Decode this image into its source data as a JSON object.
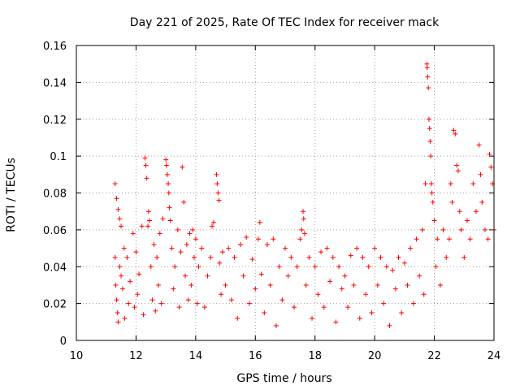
{
  "chart_data": {
    "type": "scatter",
    "title": "Day 221 of 2025, Rate Of TEC Index for receiver mack",
    "xlabel": "GPS time / hours",
    "ylabel": "ROTI / TECUs",
    "xlim": [
      10,
      24
    ],
    "ylim": [
      0,
      0.16
    ],
    "x_ticks": [
      10,
      12,
      14,
      16,
      18,
      20,
      22,
      24
    ],
    "x_tick_labels": [
      "10",
      "12",
      "14",
      "16",
      "18",
      "20",
      "22",
      "24"
    ],
    "y_ticks": [
      0,
      0.02,
      0.04,
      0.06,
      0.08,
      0.1,
      0.12,
      0.14,
      0.16
    ],
    "y_tick_labels": [
      "0",
      "0.02",
      "0.04",
      "0.06",
      "0.08",
      "0.1",
      "0.12",
      "0.14",
      "0.16"
    ],
    "grid": true,
    "marker": "+",
    "color": "#ff0000",
    "series": [
      {
        "name": "ROTI",
        "points": [
          [
            11.3,
            0.085
          ],
          [
            11.35,
            0.077
          ],
          [
            11.4,
            0.071
          ],
          [
            11.45,
            0.066
          ],
          [
            11.5,
            0.062
          ],
          [
            11.3,
            0.045
          ],
          [
            11.32,
            0.03
          ],
          [
            11.35,
            0.022
          ],
          [
            11.38,
            0.015
          ],
          [
            11.4,
            0.01
          ],
          [
            11.45,
            0.04
          ],
          [
            11.5,
            0.035
          ],
          [
            11.55,
            0.028
          ],
          [
            11.6,
            0.05
          ],
          [
            11.62,
            0.012
          ],
          [
            11.7,
            0.045
          ],
          [
            11.75,
            0.02
          ],
          [
            11.8,
            0.032
          ],
          [
            11.9,
            0.058
          ],
          [
            11.95,
            0.018
          ],
          [
            12.0,
            0.048
          ],
          [
            12.05,
            0.025
          ],
          [
            12.1,
            0.036
          ],
          [
            12.2,
            0.062
          ],
          [
            12.25,
            0.014
          ],
          [
            12.3,
            0.099
          ],
          [
            12.33,
            0.095
          ],
          [
            12.36,
            0.088
          ],
          [
            12.4,
            0.062
          ],
          [
            12.42,
            0.07
          ],
          [
            12.45,
            0.065
          ],
          [
            12.5,
            0.04
          ],
          [
            12.55,
            0.022
          ],
          [
            12.6,
            0.052
          ],
          [
            12.65,
            0.016
          ],
          [
            12.7,
            0.045
          ],
          [
            12.75,
            0.03
          ],
          [
            12.8,
            0.058
          ],
          [
            12.85,
            0.02
          ],
          [
            12.9,
            0.066
          ],
          [
            13.0,
            0.098
          ],
          [
            13.02,
            0.095
          ],
          [
            13.05,
            0.09
          ],
          [
            13.08,
            0.085
          ],
          [
            13.1,
            0.08
          ],
          [
            13.12,
            0.072
          ],
          [
            13.15,
            0.065
          ],
          [
            13.2,
            0.05
          ],
          [
            13.25,
            0.028
          ],
          [
            13.3,
            0.04
          ],
          [
            13.4,
            0.06
          ],
          [
            13.45,
            0.018
          ],
          [
            13.5,
            0.048
          ],
          [
            13.55,
            0.094
          ],
          [
            13.6,
            0.075
          ],
          [
            13.65,
            0.035
          ],
          [
            13.7,
            0.052
          ],
          [
            13.75,
            0.022
          ],
          [
            13.8,
            0.058
          ],
          [
            13.85,
            0.03
          ],
          [
            13.9,
            0.06
          ],
          [
            13.95,
            0.045
          ],
          [
            14.0,
            0.055
          ],
          [
            14.05,
            0.02
          ],
          [
            14.1,
            0.04
          ],
          [
            14.2,
            0.05
          ],
          [
            14.3,
            0.018
          ],
          [
            14.4,
            0.035
          ],
          [
            14.5,
            0.045
          ],
          [
            14.55,
            0.062
          ],
          [
            14.6,
            0.064
          ],
          [
            14.7,
            0.09
          ],
          [
            14.72,
            0.085
          ],
          [
            14.75,
            0.08
          ],
          [
            14.78,
            0.076
          ],
          [
            14.8,
            0.042
          ],
          [
            14.85,
            0.025
          ],
          [
            14.9,
            0.048
          ],
          [
            15.0,
            0.03
          ],
          [
            15.1,
            0.05
          ],
          [
            15.2,
            0.022
          ],
          [
            15.3,
            0.045
          ],
          [
            15.4,
            0.012
          ],
          [
            15.5,
            0.052
          ],
          [
            15.6,
            0.035
          ],
          [
            15.7,
            0.056
          ],
          [
            15.8,
            0.02
          ],
          [
            15.9,
            0.044
          ],
          [
            16.0,
            0.028
          ],
          [
            16.1,
            0.055
          ],
          [
            16.15,
            0.064
          ],
          [
            16.2,
            0.036
          ],
          [
            16.3,
            0.015
          ],
          [
            16.4,
            0.052
          ],
          [
            16.5,
            0.03
          ],
          [
            16.6,
            0.055
          ],
          [
            16.7,
            0.008
          ],
          [
            16.8,
            0.04
          ],
          [
            16.9,
            0.022
          ],
          [
            17.0,
            0.05
          ],
          [
            17.1,
            0.035
          ],
          [
            17.2,
            0.045
          ],
          [
            17.3,
            0.018
          ],
          [
            17.4,
            0.04
          ],
          [
            17.5,
            0.055
          ],
          [
            17.55,
            0.06
          ],
          [
            17.6,
            0.07
          ],
          [
            17.62,
            0.066
          ],
          [
            17.65,
            0.058
          ],
          [
            17.7,
            0.03
          ],
          [
            17.8,
            0.045
          ],
          [
            17.9,
            0.012
          ],
          [
            18.0,
            0.04
          ],
          [
            18.1,
            0.025
          ],
          [
            18.2,
            0.048
          ],
          [
            18.3,
            0.018
          ],
          [
            18.4,
            0.05
          ],
          [
            18.5,
            0.032
          ],
          [
            18.6,
            0.045
          ],
          [
            18.7,
            0.01
          ],
          [
            18.8,
            0.04
          ],
          [
            18.9,
            0.028
          ],
          [
            19.0,
            0.035
          ],
          [
            19.1,
            0.018
          ],
          [
            19.2,
            0.046
          ],
          [
            19.3,
            0.03
          ],
          [
            19.4,
            0.05
          ],
          [
            19.5,
            0.012
          ],
          [
            19.6,
            0.045
          ],
          [
            19.7,
            0.025
          ],
          [
            19.8,
            0.04
          ],
          [
            19.9,
            0.015
          ],
          [
            20.0,
            0.05
          ],
          [
            20.1,
            0.03
          ],
          [
            20.2,
            0.045
          ],
          [
            20.3,
            0.02
          ],
          [
            20.4,
            0.04
          ],
          [
            20.5,
            0.008
          ],
          [
            20.6,
            0.038
          ],
          [
            20.7,
            0.028
          ],
          [
            20.8,
            0.045
          ],
          [
            20.9,
            0.015
          ],
          [
            21.0,
            0.042
          ],
          [
            21.1,
            0.03
          ],
          [
            21.2,
            0.05
          ],
          [
            21.3,
            0.02
          ],
          [
            21.4,
            0.055
          ],
          [
            21.5,
            0.035
          ],
          [
            21.6,
            0.06
          ],
          [
            21.65,
            0.025
          ],
          [
            21.7,
            0.085
          ],
          [
            21.75,
            0.15
          ],
          [
            21.76,
            0.148
          ],
          [
            21.78,
            0.143
          ],
          [
            21.8,
            0.137
          ],
          [
            21.82,
            0.12
          ],
          [
            21.84,
            0.115
          ],
          [
            21.86,
            0.108
          ],
          [
            21.88,
            0.1
          ],
          [
            21.9,
            0.085
          ],
          [
            21.92,
            0.08
          ],
          [
            21.95,
            0.075
          ],
          [
            22.0,
            0.065
          ],
          [
            22.05,
            0.04
          ],
          [
            22.1,
            0.055
          ],
          [
            22.2,
            0.03
          ],
          [
            22.3,
            0.06
          ],
          [
            22.4,
            0.045
          ],
          [
            22.5,
            0.055
          ],
          [
            22.55,
            0.085
          ],
          [
            22.6,
            0.075
          ],
          [
            22.65,
            0.114
          ],
          [
            22.7,
            0.112
          ],
          [
            22.75,
            0.095
          ],
          [
            22.8,
            0.092
          ],
          [
            22.85,
            0.07
          ],
          [
            22.9,
            0.06
          ],
          [
            23.0,
            0.045
          ],
          [
            23.1,
            0.065
          ],
          [
            23.2,
            0.055
          ],
          [
            23.3,
            0.085
          ],
          [
            23.4,
            0.07
          ],
          [
            23.5,
            0.106
          ],
          [
            23.55,
            0.09
          ],
          [
            23.6,
            0.075
          ],
          [
            23.7,
            0.06
          ],
          [
            23.8,
            0.055
          ],
          [
            23.85,
            0.101
          ],
          [
            23.9,
            0.094
          ],
          [
            23.95,
            0.085
          ],
          [
            24.0,
            0.06
          ]
        ]
      }
    ]
  }
}
